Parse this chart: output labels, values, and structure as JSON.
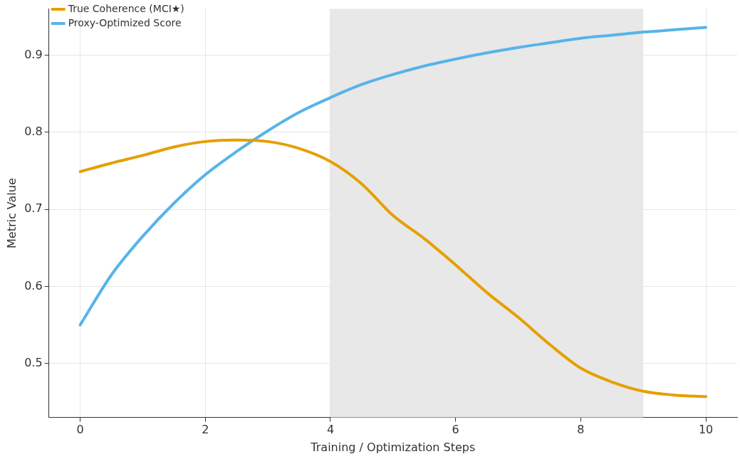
{
  "chart_data": {
    "type": "line",
    "xlabel": "Training / Optimization Steps",
    "ylabel": "Metric Value",
    "xlim": [
      -0.5,
      10.5
    ],
    "xticks": [
      0,
      2,
      4,
      6,
      8,
      10
    ],
    "ylim": [
      0.43,
      0.96
    ],
    "yticks": [
      0.5,
      0.6,
      0.7,
      0.8,
      0.9
    ],
    "grid": true,
    "legend": "top left",
    "marker": "none",
    "line_style": "solid",
    "bands": [
      {
        "axis": "x",
        "from": 4,
        "to": 9,
        "color": "#e8e8e8"
      }
    ],
    "series": [
      {
        "name": "True Coherence (MCI★)",
        "color": "#e69f00",
        "x": [
          0,
          0.5,
          1,
          1.5,
          2,
          2.5,
          3,
          3.5,
          4,
          4.5,
          5,
          5.5,
          6,
          6.5,
          7,
          7.5,
          8,
          8.5,
          9,
          9.5,
          10
        ],
        "values": [
          0.749,
          0.76,
          0.77,
          0.781,
          0.788,
          0.79,
          0.788,
          0.779,
          0.762,
          0.733,
          0.692,
          0.662,
          0.628,
          0.592,
          0.56,
          0.525,
          0.494,
          0.476,
          0.464,
          0.459,
          0.457
        ]
      },
      {
        "name": "Proxy-Optimized Score",
        "color": "#56b4e9",
        "x": [
          0,
          0.5,
          1,
          1.5,
          2,
          2.5,
          3,
          3.5,
          4,
          4.5,
          5,
          5.5,
          6,
          6.5,
          7,
          7.5,
          8,
          8.5,
          9,
          9.5,
          10
        ],
        "values": [
          0.55,
          0.615,
          0.665,
          0.708,
          0.745,
          0.775,
          0.802,
          0.826,
          0.845,
          0.862,
          0.875,
          0.886,
          0.895,
          0.903,
          0.91,
          0.916,
          0.922,
          0.926,
          0.93,
          0.933,
          0.936
        ]
      }
    ]
  }
}
